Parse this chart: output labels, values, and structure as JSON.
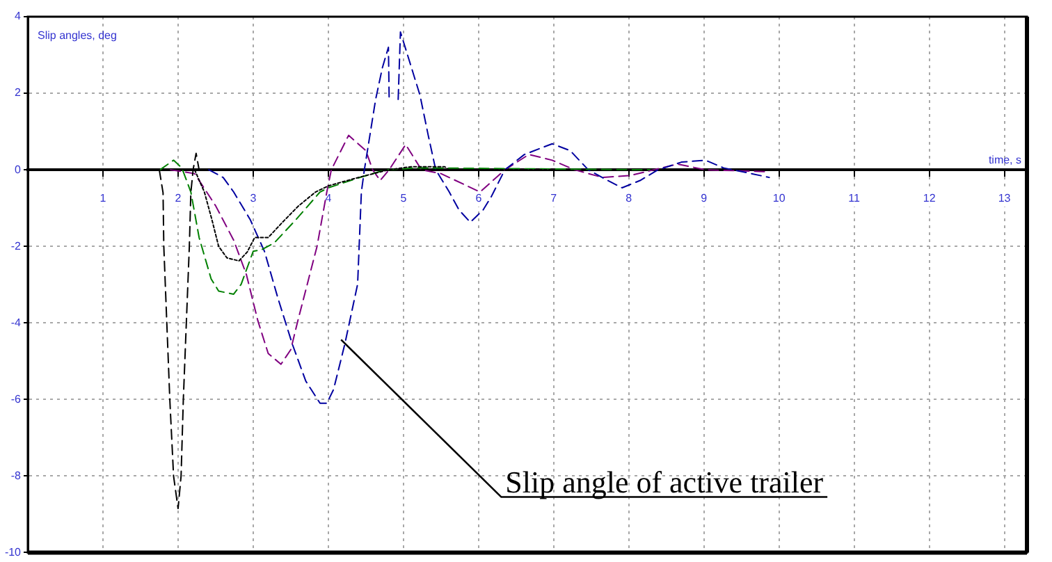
{
  "chart_data": {
    "type": "line",
    "xlabel": "time, s",
    "ylabel": "Slip angles, deg",
    "xlim": [
      0,
      13.3
    ],
    "xticks": [
      1,
      2,
      3,
      4,
      5,
      6,
      7,
      8,
      9,
      10,
      11,
      12,
      13
    ],
    "ylim": [
      -10,
      4
    ],
    "yticks": [
      4,
      2,
      0,
      -2,
      -4,
      -6,
      -8,
      -10
    ],
    "grid": true,
    "legend": false,
    "series": [
      {
        "color": "#000000",
        "line_style": "dashed",
        "x": [
          1.75,
          1.8,
          1.81,
          1.85,
          1.89,
          1.94,
          2.0,
          2.04,
          2.07,
          2.11,
          2.15,
          2.17,
          2.2,
          2.24,
          2.28
        ],
        "values": [
          0,
          -0.6,
          -2,
          -4,
          -6,
          -8,
          -8.85,
          -8,
          -6,
          -4,
          -2,
          -0.6,
          0,
          0.43,
          0
        ]
      },
      {
        "color": "#000000",
        "line_style": "dotted",
        "x": [
          2.22,
          2.35,
          2.45,
          2.54,
          2.65,
          2.81,
          2.92,
          3.02,
          3.2,
          3.39,
          3.6,
          3.83,
          4.0,
          4.4,
          4.8,
          5.1,
          5.55,
          5.6,
          7.0
        ],
        "values": [
          0,
          -0.58,
          -1.3,
          -2.0,
          -2.3,
          -2.38,
          -2.15,
          -1.77,
          -1.77,
          -1.37,
          -0.95,
          -0.58,
          -0.42,
          -0.2,
          0,
          0.08,
          0.08,
          0,
          0
        ]
      },
      {
        "color": "#008000",
        "line_style": "dashed",
        "x": [
          1.76,
          1.94,
          2.05,
          2.17,
          2.28,
          2.44,
          2.54,
          2.74,
          2.84,
          3.0,
          3.11,
          3.28,
          3.57,
          3.89,
          4.0,
          4.39,
          4.76,
          5.2,
          8.28
        ],
        "values": [
          0,
          0.25,
          0.05,
          -0.58,
          -1.77,
          -2.85,
          -3.17,
          -3.25,
          -2.99,
          -2.13,
          -2.09,
          -1.91,
          -1.3,
          -0.58,
          -0.47,
          -0.22,
          0,
          0.05,
          0
        ]
      },
      {
        "color": "#0000a0",
        "line_style": "dashed",
        "x": [
          2.41,
          2.6,
          2.74,
          2.96,
          3.15,
          3.33,
          3.52,
          3.7,
          3.89,
          3.98,
          4.07,
          4.22,
          4.39,
          4.44,
          4.48,
          4.63,
          4.72,
          4.8,
          4.81,
          4.87,
          4.93,
          4.96,
          5.22,
          5.33,
          5.43,
          5.61,
          5.74,
          5.89,
          6.06,
          6.17,
          6.35,
          6.61,
          6.98,
          7.22,
          7.46,
          7.72,
          7.91,
          8.15,
          8.39,
          8.7,
          9.02,
          9.26,
          9.63,
          9.87
        ],
        "values": [
          0,
          -0.2,
          -0.58,
          -1.3,
          -2.13,
          -3.36,
          -4.55,
          -5.52,
          -6.1,
          -6.1,
          -5.74,
          -4.55,
          -2.99,
          -0.58,
          0,
          1.84,
          2.67,
          3.2,
          1.84,
          null,
          1.84,
          3.6,
          1.95,
          0.9,
          0,
          -0.58,
          -1.05,
          -1.37,
          -1.05,
          -0.7,
          0,
          0.4,
          0.68,
          0.5,
          0,
          -0.28,
          -0.47,
          -0.28,
          0,
          0.2,
          0.25,
          0.05,
          -0.1,
          -0.2
        ]
      },
      {
        "color": "#800080",
        "line_style": "dashed",
        "x": [
          1.9,
          2.22,
          2.5,
          2.74,
          2.91,
          3.06,
          3.2,
          3.37,
          3.5,
          3.6,
          3.85,
          3.98,
          4.04,
          4.27,
          4.5,
          4.59,
          4.69,
          4.81,
          5.03,
          5.24,
          5.5,
          6.02,
          6.35,
          6.67,
          6.98,
          7.28,
          7.65,
          8.02,
          8.65,
          9.02,
          9.87
        ],
        "values": [
          0,
          -0.1,
          -0.94,
          -1.84,
          -2.74,
          -3.93,
          -4.8,
          -5.08,
          -4.7,
          -3.9,
          -2.0,
          -0.58,
          0,
          0.9,
          0.5,
          0,
          -0.28,
          0,
          0.66,
          0,
          -0.1,
          -0.58,
          0,
          0.4,
          0.25,
          0,
          -0.2,
          -0.15,
          0.15,
          0,
          -0.05
        ]
      }
    ],
    "annotations": [
      {
        "text": "Slip angle of active trailer",
        "x": 4.17,
        "y": -4.44
      }
    ]
  }
}
